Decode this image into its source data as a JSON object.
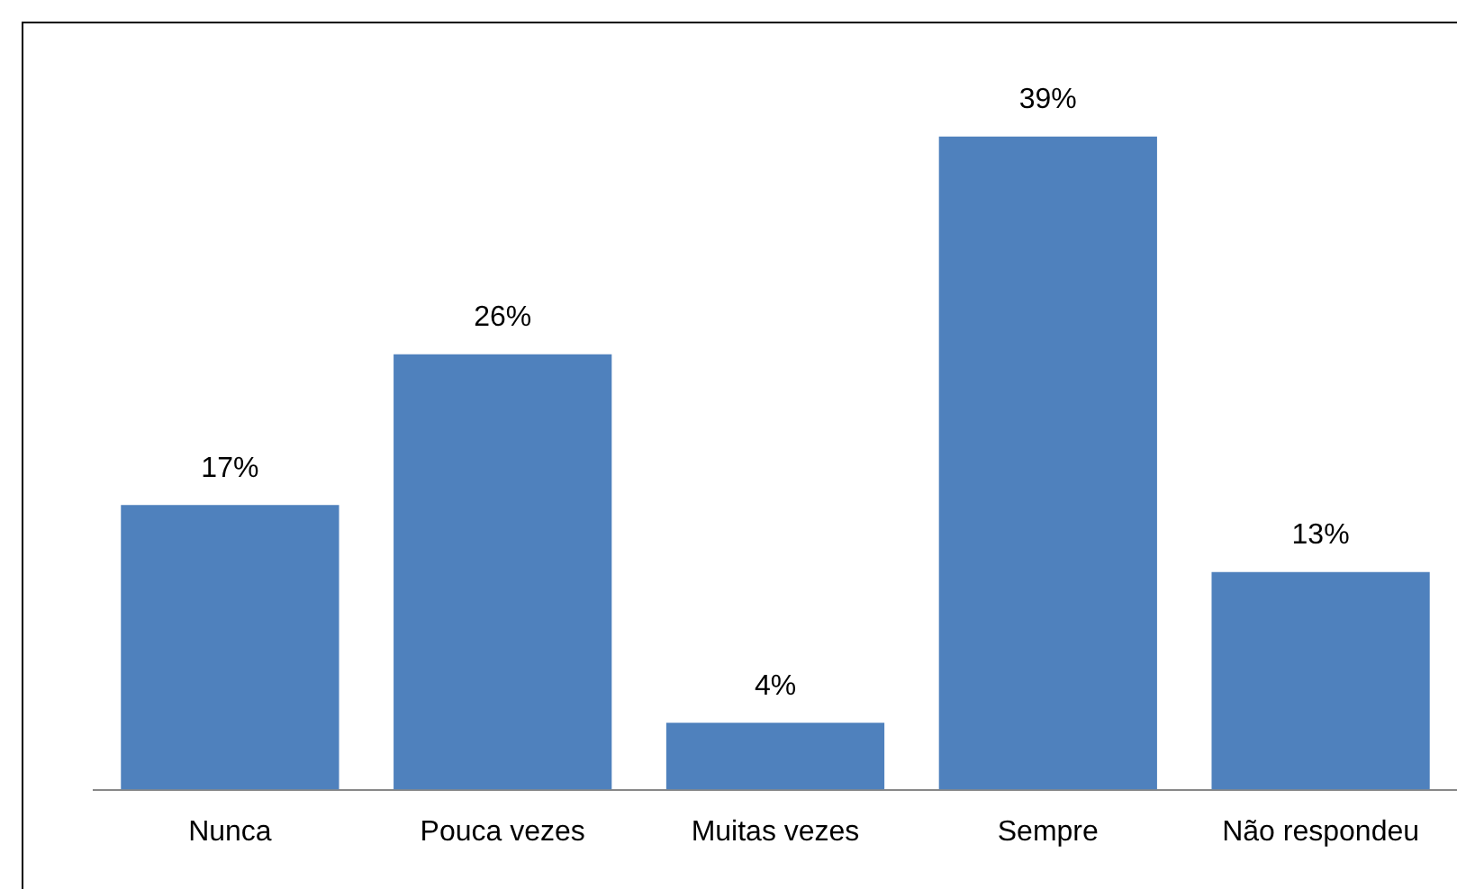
{
  "chart_data": {
    "type": "bar",
    "categories": [
      "Nunca",
      "Pouca vezes",
      "Muitas vezes",
      "Sempre",
      "Não respondeu"
    ],
    "values": [
      17,
      26,
      4,
      39,
      13
    ],
    "value_labels": [
      "17%",
      "26%",
      "4%",
      "39%",
      "13%"
    ],
    "color": "#4f81bd",
    "tick_labels": "x",
    "grid": false,
    "legend": false
  }
}
